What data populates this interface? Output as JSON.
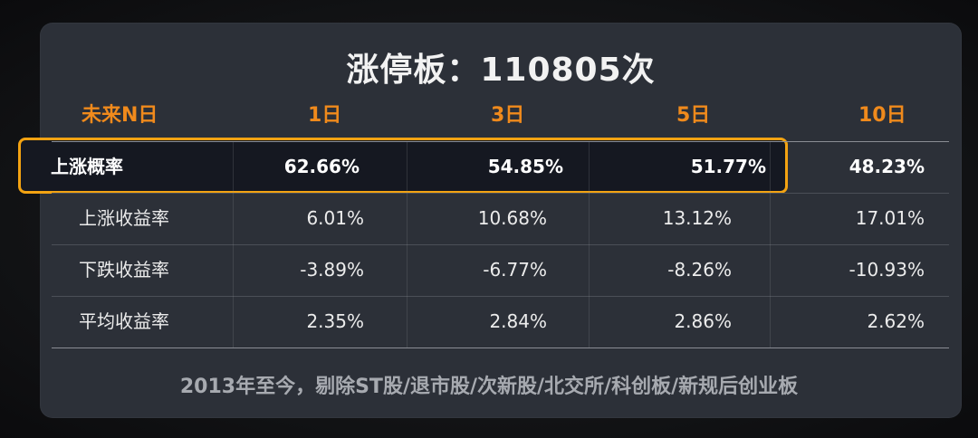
{
  "title": "涨停板：110805次",
  "header": {
    "label": "未来N日",
    "cols": [
      "1日",
      "3日",
      "5日",
      "10日"
    ]
  },
  "rows": [
    {
      "label": "上涨概率",
      "values": [
        "62.66%",
        "54.85%",
        "51.77%",
        "48.23%"
      ]
    },
    {
      "label": "上涨收益率",
      "values": [
        "6.01%",
        "10.68%",
        "13.12%",
        "17.01%"
      ]
    },
    {
      "label": "下跌收益率",
      "values": [
        "-3.89%",
        "-6.77%",
        "-8.26%",
        "-10.93%"
      ]
    },
    {
      "label": "平均收益率",
      "values": [
        "2.35%",
        "2.84%",
        "2.86%",
        "2.62%"
      ]
    }
  ],
  "footer": "2013年至今，剔除ST股/退市股/次新股/北交所/科创板/新规后创业板",
  "colors": {
    "accent_orange": "#f08a1c",
    "highlight_border": "#f3a312",
    "card_bg": "#2c3038"
  }
}
